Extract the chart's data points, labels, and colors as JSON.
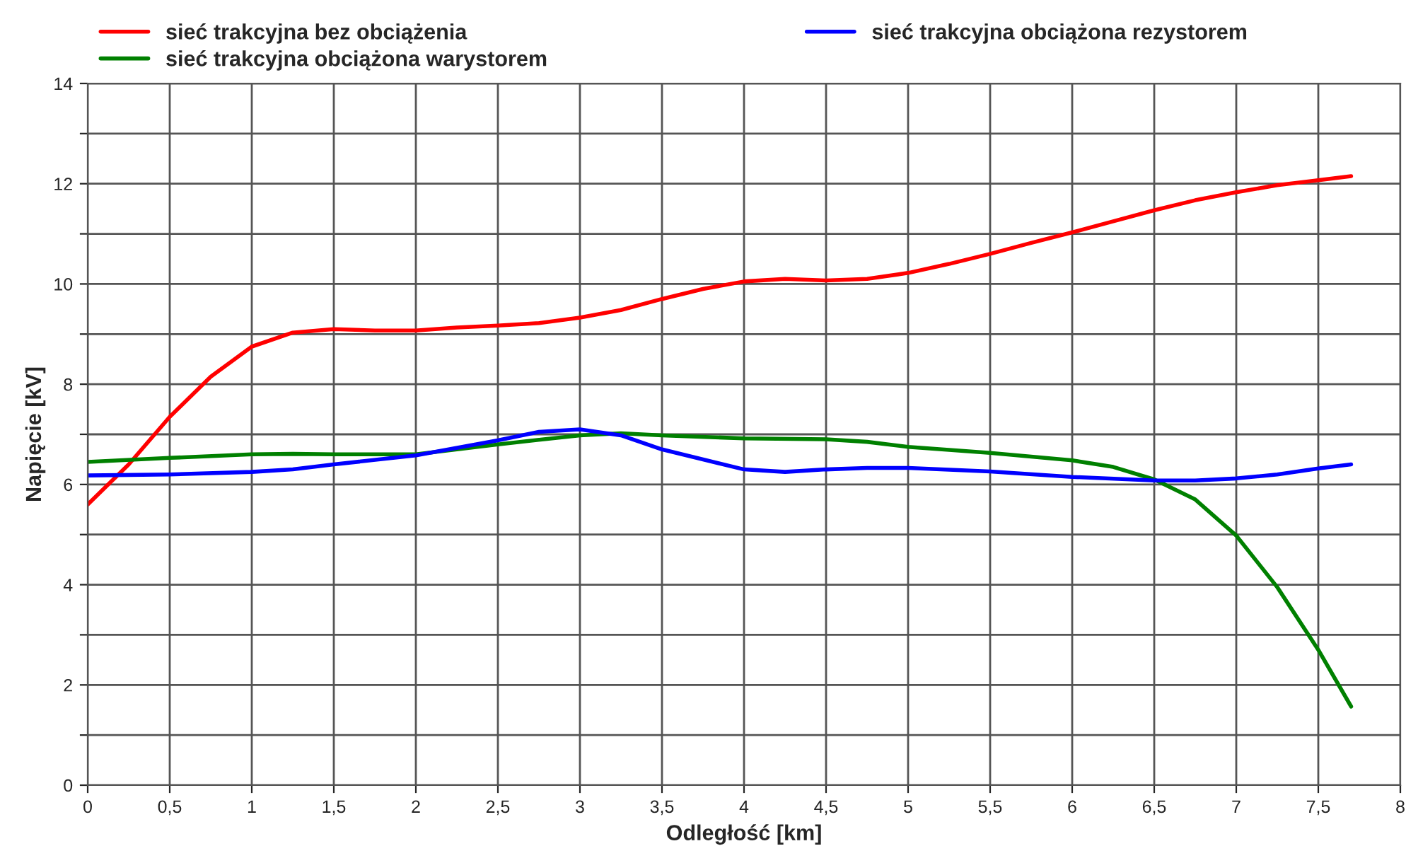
{
  "chart_data": {
    "type": "line",
    "xlabel": "Odległość [km]",
    "ylabel": "Napięcie [kV]",
    "xlim": [
      0,
      8
    ],
    "xticks": [
      0,
      {
        "value": 0.5,
        "label": "0,5"
      },
      1,
      {
        "value": 1.5,
        "label": "1,5"
      },
      2,
      {
        "value": 2.5,
        "label": "2,5"
      },
      3,
      {
        "value": 3.5,
        "label": "3,5"
      },
      4,
      {
        "value": 4.5,
        "label": "4,5"
      },
      5,
      {
        "value": 5.5,
        "label": "5,5"
      },
      6,
      {
        "value": 6.5,
        "label": "6,5"
      },
      7,
      {
        "value": 7.5,
        "label": "7,5"
      },
      8
    ],
    "ylim": [
      0,
      14
    ],
    "yticks": [
      0,
      {
        "value": 1,
        "label": null
      },
      2,
      {
        "value": 3,
        "label": null
      },
      4,
      {
        "value": 5,
        "label": null
      },
      6,
      {
        "value": 7,
        "label": null
      },
      8,
      {
        "value": 9,
        "label": null
      },
      10,
      {
        "value": 11,
        "label": null
      },
      12,
      {
        "value": 13,
        "label": null
      },
      14
    ],
    "grid": true,
    "legend": "top",
    "marker": "none",
    "line_style": "solid",
    "series": [
      {
        "name": "sieć trakcyjna bez obciążenia",
        "color": "#ff0000",
        "x": [
          0,
          0.25,
          0.5,
          0.75,
          1.0,
          1.25,
          1.5,
          1.75,
          2.0,
          2.25,
          2.5,
          2.75,
          3.0,
          3.25,
          3.5,
          3.75,
          4.0,
          4.25,
          4.5,
          4.75,
          5.0,
          5.25,
          5.5,
          5.75,
          6.0,
          6.25,
          6.5,
          6.75,
          7.0,
          7.25,
          7.5,
          7.7
        ],
        "values": [
          5.6,
          6.4,
          7.35,
          8.15,
          8.75,
          9.03,
          9.1,
          9.07,
          9.07,
          9.13,
          9.17,
          9.22,
          9.33,
          9.48,
          9.7,
          9.9,
          10.05,
          10.1,
          10.07,
          10.1,
          10.22,
          10.4,
          10.6,
          10.82,
          11.03,
          11.25,
          11.47,
          11.67,
          11.83,
          11.97,
          12.07,
          12.15
        ]
      },
      {
        "name": "sieć trakcyjna obciążona warystorem",
        "color": "#008000",
        "x": [
          0,
          0.5,
          1.0,
          1.25,
          1.5,
          2.0,
          2.5,
          3.0,
          3.25,
          3.5,
          4.0,
          4.5,
          4.75,
          5.0,
          5.5,
          6.0,
          6.25,
          6.5,
          6.75,
          7.0,
          7.25,
          7.5,
          7.7
        ],
        "values": [
          6.45,
          6.53,
          6.6,
          6.61,
          6.6,
          6.6,
          6.8,
          6.98,
          7.02,
          6.98,
          6.92,
          6.9,
          6.85,
          6.75,
          6.63,
          6.48,
          6.35,
          6.1,
          5.7,
          4.98,
          3.95,
          2.7,
          1.57
        ]
      },
      {
        "name": "sieć trakcyjna obciążona rezystorem",
        "color": "#0000ff",
        "x": [
          0,
          0.5,
          1.0,
          1.25,
          1.5,
          2.0,
          2.5,
          2.75,
          3.0,
          3.25,
          3.5,
          4.0,
          4.25,
          4.5,
          4.75,
          5.0,
          5.5,
          6.0,
          6.5,
          6.75,
          7.0,
          7.25,
          7.5,
          7.7
        ],
        "values": [
          6.18,
          6.2,
          6.25,
          6.3,
          6.4,
          6.58,
          6.88,
          7.05,
          7.1,
          6.98,
          6.7,
          6.3,
          6.25,
          6.3,
          6.33,
          6.33,
          6.26,
          6.15,
          6.08,
          6.08,
          6.12,
          6.2,
          6.32,
          6.4
        ]
      }
    ]
  }
}
